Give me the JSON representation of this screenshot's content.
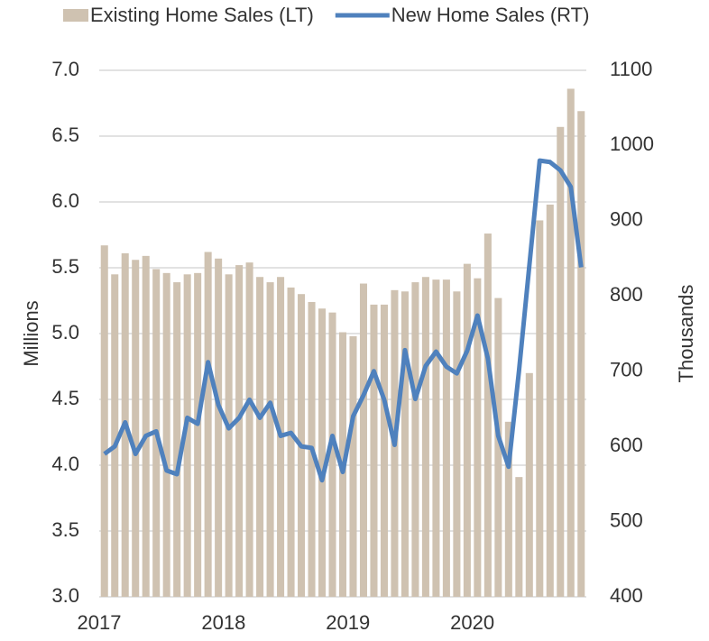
{
  "chart_data": {
    "type": "bar_line",
    "categories": [
      "2017",
      null,
      null,
      null,
      null,
      null,
      null,
      null,
      null,
      null,
      null,
      null,
      "2018",
      null,
      null,
      null,
      null,
      null,
      null,
      null,
      null,
      null,
      null,
      null,
      "2019",
      null,
      null,
      null,
      null,
      null,
      null,
      null,
      null,
      null,
      null,
      null,
      "2020",
      null,
      null,
      null,
      null,
      null,
      null,
      null,
      null,
      null,
      null
    ],
    "series": [
      {
        "name": "Existing Home Sales (LT)",
        "type": "bar",
        "color": "#cfc2b1",
        "values": [
          5.67,
          5.45,
          5.61,
          5.56,
          5.59,
          5.49,
          5.46,
          5.39,
          5.45,
          5.46,
          5.62,
          5.57,
          5.45,
          5.52,
          5.54,
          5.43,
          5.39,
          5.43,
          5.35,
          5.3,
          5.24,
          5.19,
          5.16,
          5.01,
          4.98,
          5.38,
          5.22,
          5.22,
          5.33,
          5.32,
          5.39,
          5.43,
          5.41,
          5.41,
          5.32,
          5.53,
          5.42,
          5.76,
          5.27,
          4.33,
          3.91,
          4.7,
          5.86,
          5.98,
          6.57,
          6.86,
          6.69
        ]
      },
      {
        "name": "New Home Sales (RT)",
        "type": "line",
        "axis": "y2",
        "color": "#4f81bd",
        "values": [
          590,
          600,
          632,
          590,
          614,
          620,
          568,
          563,
          638,
          630,
          712,
          655,
          624,
          638,
          662,
          638,
          658,
          614,
          618,
          600,
          598,
          555,
          614,
          566,
          640,
          668,
          700,
          662,
          602,
          728,
          663,
          707,
          726,
          706,
          697,
          727,
          774,
          717,
          614,
          573,
          700,
          840,
          980,
          978,
          967,
          945,
          838
        ]
      }
    ],
    "ylabel": "Millions",
    "y2label": "Thousands",
    "ylim": [
      3,
      7
    ],
    "yticks": [
      {
        "value": 3,
        "label": "3.0"
      },
      {
        "value": 3.5,
        "label": "3.5"
      },
      {
        "value": 4,
        "label": "4.0"
      },
      {
        "value": 4.5,
        "label": "4.5"
      },
      {
        "value": 5,
        "label": "5.0"
      },
      {
        "value": 5.5,
        "label": "5.5"
      },
      {
        "value": 6,
        "label": "6.0"
      },
      {
        "value": 6.5,
        "label": "6.5"
      },
      {
        "value": 7,
        "label": "7.0"
      }
    ],
    "y2lim": [
      400,
      1100
    ],
    "y2ticks": [
      400,
      500,
      600,
      700,
      800,
      900,
      1000,
      1100
    ],
    "grid": true,
    "legend": "top"
  }
}
